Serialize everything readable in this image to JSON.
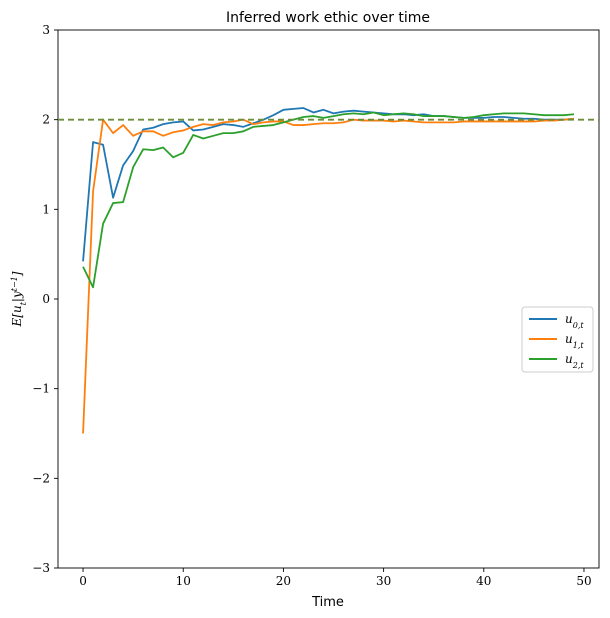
{
  "chart_data": {
    "type": "line",
    "title": "Inferred work ethic over time",
    "xlabel": "Time",
    "ylabel": "E[u_t|y^{t-1}]",
    "xlim": [
      -2.5,
      51.5
    ],
    "ylim": [
      -3,
      3
    ],
    "xticks": [
      0,
      10,
      20,
      30,
      40,
      50
    ],
    "yticks": [
      -3,
      -2,
      -1,
      0,
      1,
      2,
      3
    ],
    "ytick_labels": [
      "−3",
      "−2",
      "−1",
      "0",
      "1",
      "2",
      "3"
    ],
    "grid": false,
    "legend_position": "center-right",
    "reference_line": {
      "y": 2,
      "style": "dashed",
      "color": "#6b8e3a"
    },
    "x": [
      0,
      1,
      2,
      3,
      4,
      5,
      6,
      7,
      8,
      9,
      10,
      11,
      12,
      13,
      14,
      15,
      16,
      17,
      18,
      19,
      20,
      21,
      22,
      23,
      24,
      25,
      26,
      27,
      28,
      29,
      30,
      31,
      32,
      33,
      34,
      35,
      36,
      37,
      38,
      39,
      40,
      41,
      42,
      43,
      44,
      45,
      46,
      47,
      48,
      49
    ],
    "series": [
      {
        "name": "u_{0,t}",
        "color": "#1f77b4",
        "values": [
          0.42,
          1.75,
          1.72,
          1.13,
          1.49,
          1.65,
          1.89,
          1.91,
          1.95,
          1.97,
          1.98,
          1.88,
          1.89,
          1.92,
          1.95,
          1.94,
          1.92,
          1.96,
          2.0,
          2.05,
          2.11,
          2.12,
          2.13,
          2.08,
          2.11,
          2.07,
          2.09,
          2.1,
          2.09,
          2.08,
          2.07,
          2.06,
          2.06,
          2.05,
          2.06,
          2.04,
          2.04,
          2.03,
          2.02,
          2.02,
          2.02,
          2.03,
          2.03,
          2.02,
          2.01,
          2.01,
          2.0,
          2.0,
          2.0,
          2.01
        ]
      },
      {
        "name": "u_{1,t}",
        "color": "#ff7f0e",
        "values": [
          -1.5,
          1.2,
          2.0,
          1.85,
          1.94,
          1.82,
          1.87,
          1.87,
          1.82,
          1.86,
          1.88,
          1.92,
          1.95,
          1.94,
          1.97,
          1.98,
          2.0,
          1.95,
          1.97,
          1.98,
          1.98,
          1.94,
          1.94,
          1.95,
          1.96,
          1.96,
          1.97,
          2.0,
          1.99,
          1.99,
          1.99,
          1.98,
          1.99,
          1.98,
          1.97,
          1.97,
          1.97,
          1.97,
          1.98,
          1.98,
          1.98,
          1.98,
          1.98,
          1.98,
          1.98,
          1.98,
          1.99,
          1.99,
          2.0,
          2.01
        ]
      },
      {
        "name": "u_{2,t}",
        "color": "#2ca02c",
        "values": [
          0.36,
          0.13,
          0.84,
          1.07,
          1.08,
          1.47,
          1.67,
          1.66,
          1.69,
          1.58,
          1.63,
          1.83,
          1.79,
          1.82,
          1.85,
          1.85,
          1.87,
          1.92,
          1.93,
          1.94,
          1.97,
          2.0,
          2.03,
          2.04,
          2.02,
          2.04,
          2.06,
          2.07,
          2.06,
          2.08,
          2.05,
          2.06,
          2.07,
          2.06,
          2.04,
          2.04,
          2.04,
          2.03,
          2.02,
          2.03,
          2.05,
          2.06,
          2.07,
          2.07,
          2.07,
          2.06,
          2.05,
          2.05,
          2.05,
          2.06
        ]
      }
    ]
  }
}
